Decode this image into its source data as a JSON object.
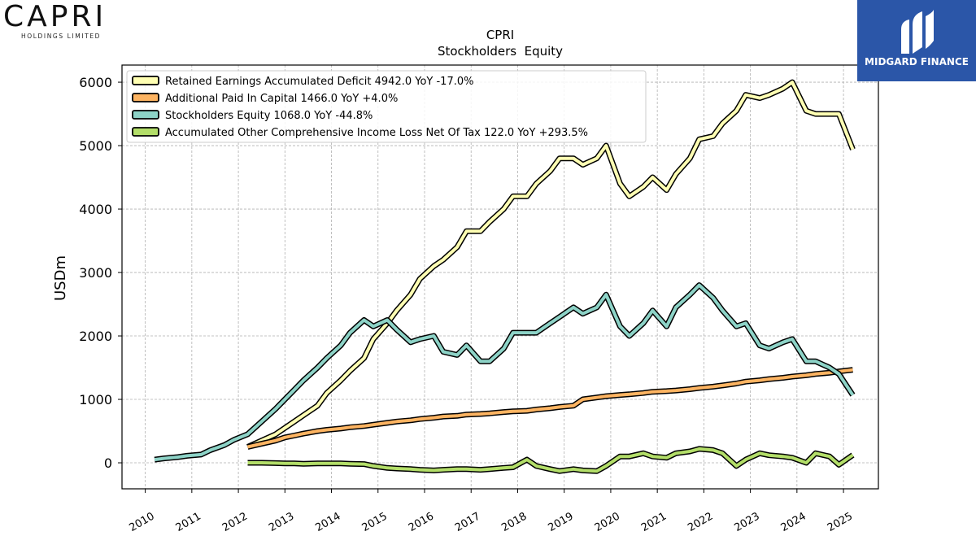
{
  "brand": {
    "name": "CAPRI",
    "subtitle": "HOLDINGS LIMITED"
  },
  "badge": {
    "text": "MIDGARD FINANCE",
    "color": "#2b56a8"
  },
  "chart_data": {
    "type": "line",
    "title": "CPRI",
    "subtitle": "Stockholders  Equity",
    "ylabel": "USDm",
    "xlabel": "",
    "xlim": [
      2009.5,
      2025.75
    ],
    "ylim": [
      -410,
      6270
    ],
    "xticks": [
      2010,
      2011,
      2012,
      2013,
      2014,
      2015,
      2016,
      2017,
      2018,
      2019,
      2020,
      2021,
      2022,
      2023,
      2024,
      2025
    ],
    "yticks": [
      0,
      1000,
      2000,
      3000,
      4000,
      5000,
      6000
    ],
    "grid": true,
    "legend_position": "top-left",
    "series": [
      {
        "name": "Retained Earnings Accumulated Deficit  4942.0 YoY -17.0%",
        "color": "#ffffb3",
        "x": [
          2012.2,
          2012.5,
          2012.8,
          2013.0,
          2013.2,
          2013.4,
          2013.7,
          2013.9,
          2014.2,
          2014.4,
          2014.7,
          2014.9,
          2015.2,
          2015.4,
          2015.7,
          2015.9,
          2016.2,
          2016.4,
          2016.7,
          2016.9,
          2017.2,
          2017.4,
          2017.7,
          2017.9,
          2018.2,
          2018.4,
          2018.7,
          2018.9,
          2019.2,
          2019.4,
          2019.7,
          2019.9,
          2020.2,
          2020.4,
          2020.7,
          2020.9,
          2021.2,
          2021.4,
          2021.7,
          2021.9,
          2022.2,
          2022.4,
          2022.7,
          2022.9,
          2023.2,
          2023.4,
          2023.7,
          2023.9,
          2024.2,
          2024.4,
          2024.7,
          2024.9,
          2025.2
        ],
        "values": [
          250,
          350,
          450,
          550,
          650,
          750,
          900,
          1100,
          1300,
          1450,
          1650,
          1950,
          2200,
          2400,
          2650,
          2900,
          3100,
          3200,
          3400,
          3650,
          3650,
          3800,
          4000,
          4200,
          4200,
          4400,
          4600,
          4800,
          4800,
          4700,
          4800,
          5000,
          4400,
          4200,
          4350,
          4500,
          4300,
          4550,
          4800,
          5100,
          5150,
          5350,
          5550,
          5800,
          5750,
          5800,
          5900,
          6000,
          5550,
          5500,
          5500,
          5500,
          4942
        ]
      },
      {
        "name": "Additional Paid In Capital  1466.0 YoY +4.0%",
        "color": "#fdb462",
        "x": [
          2012.2,
          2012.5,
          2012.8,
          2013.0,
          2013.2,
          2013.4,
          2013.7,
          2013.9,
          2014.2,
          2014.4,
          2014.7,
          2014.9,
          2015.2,
          2015.4,
          2015.7,
          2015.9,
          2016.2,
          2016.4,
          2016.7,
          2016.9,
          2017.2,
          2017.4,
          2017.7,
          2017.9,
          2018.2,
          2018.4,
          2018.7,
          2018.9,
          2019.2,
          2019.4,
          2019.7,
          2019.9,
          2020.2,
          2020.4,
          2020.7,
          2020.9,
          2021.2,
          2021.4,
          2021.7,
          2021.9,
          2022.2,
          2022.4,
          2022.7,
          2022.9,
          2023.2,
          2023.4,
          2023.7,
          2023.9,
          2024.2,
          2024.4,
          2024.7,
          2024.9,
          2025.2
        ],
        "values": [
          250,
          300,
          350,
          400,
          430,
          460,
          500,
          520,
          540,
          560,
          580,
          600,
          630,
          650,
          670,
          690,
          710,
          730,
          740,
          760,
          770,
          780,
          800,
          810,
          820,
          840,
          860,
          880,
          900,
          1000,
          1030,
          1050,
          1070,
          1080,
          1100,
          1120,
          1130,
          1140,
          1160,
          1180,
          1200,
          1220,
          1250,
          1280,
          1300,
          1320,
          1340,
          1360,
          1380,
          1400,
          1420,
          1440,
          1466
        ]
      },
      {
        "name": "Stockholders Equity  1068.0 YoY -44.8%",
        "color": "#8dd3c7",
        "x": [
          2010.2,
          2010.4,
          2010.7,
          2010.9,
          2011.2,
          2011.4,
          2011.7,
          2011.9,
          2012.2,
          2012.5,
          2012.8,
          2013.0,
          2013.2,
          2013.4,
          2013.7,
          2013.9,
          2014.2,
          2014.4,
          2014.7,
          2014.9,
          2015.2,
          2015.4,
          2015.7,
          2015.9,
          2016.2,
          2016.4,
          2016.7,
          2016.9,
          2017.2,
          2017.4,
          2017.7,
          2017.9,
          2018.2,
          2018.4,
          2018.7,
          2018.9,
          2019.2,
          2019.4,
          2019.7,
          2019.9,
          2020.2,
          2020.4,
          2020.7,
          2020.9,
          2021.2,
          2021.4,
          2021.7,
          2021.9,
          2022.2,
          2022.4,
          2022.7,
          2022.9,
          2023.2,
          2023.4,
          2023.7,
          2023.9,
          2024.2,
          2024.4,
          2024.7,
          2024.9,
          2025.2
        ],
        "values": [
          50,
          70,
          90,
          110,
          130,
          200,
          280,
          360,
          450,
          650,
          850,
          1000,
          1150,
          1300,
          1500,
          1650,
          1850,
          2050,
          2250,
          2150,
          2250,
          2100,
          1900,
          1950,
          2000,
          1750,
          1700,
          1850,
          1600,
          1600,
          1800,
          2050,
          2050,
          2050,
          2200,
          2300,
          2450,
          2350,
          2450,
          2650,
          2150,
          2000,
          2200,
          2400,
          2150,
          2450,
          2650,
          2800,
          2600,
          2400,
          2150,
          2200,
          1850,
          1800,
          1900,
          1950,
          1600,
          1600,
          1500,
          1400,
          1068
        ]
      },
      {
        "name": "Accumulated Other Comprehensive Income Loss Net Of Tax  122.0 YoY +293.5%",
        "color": "#b3de69",
        "x": [
          2012.2,
          2012.5,
          2012.8,
          2013.0,
          2013.2,
          2013.4,
          2013.7,
          2013.9,
          2014.2,
          2014.4,
          2014.7,
          2014.9,
          2015.2,
          2015.4,
          2015.7,
          2015.9,
          2016.2,
          2016.4,
          2016.7,
          2016.9,
          2017.2,
          2017.4,
          2017.7,
          2017.9,
          2018.2,
          2018.4,
          2018.7,
          2018.9,
          2019.2,
          2019.4,
          2019.7,
          2019.9,
          2020.2,
          2020.4,
          2020.7,
          2020.9,
          2021.2,
          2021.4,
          2021.7,
          2021.9,
          2022.2,
          2022.4,
          2022.7,
          2022.9,
          2023.2,
          2023.4,
          2023.7,
          2023.9,
          2024.2,
          2024.4,
          2024.7,
          2024.9,
          2025.2
        ],
        "values": [
          0,
          0,
          -5,
          -10,
          -10,
          -15,
          -10,
          -10,
          -10,
          -15,
          -20,
          -50,
          -80,
          -90,
          -100,
          -110,
          -120,
          -110,
          -100,
          -100,
          -110,
          -100,
          -80,
          -70,
          50,
          -50,
          -100,
          -130,
          -100,
          -120,
          -130,
          -50,
          100,
          100,
          150,
          100,
          80,
          150,
          180,
          220,
          200,
          150,
          -50,
          50,
          150,
          120,
          100,
          80,
          0,
          150,
          100,
          -30,
          122
        ]
      }
    ]
  }
}
